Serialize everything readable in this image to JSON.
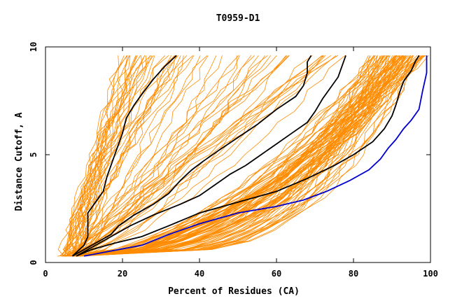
{
  "chart_data": {
    "type": "line",
    "title": "T0959-D1",
    "xlabel": "Percent of Residues (CA)",
    "ylabel": "Distance Cutoff, A",
    "xlim": [
      0,
      100
    ],
    "ylim": [
      0,
      10
    ],
    "x_ticks": [
      0,
      20,
      40,
      60,
      80,
      100
    ],
    "y_ticks": [
      0,
      5,
      10
    ],
    "x_tick_labels": [
      "0",
      "20",
      "40",
      "60",
      "80",
      "100"
    ],
    "y_tick_labels": [
      "0",
      "5",
      "10"
    ],
    "grid": false,
    "legend": "none",
    "colors": {
      "background_curves": "#ff8c00",
      "highlight_black": "#000000",
      "highlight_blue": "#0000cc"
    },
    "highlight_series": [
      {
        "color": "#000000",
        "points": [
          [
            7,
            0.3
          ],
          [
            10,
            0.8
          ],
          [
            11,
            1.2
          ],
          [
            11,
            2.3
          ],
          [
            13,
            2.8
          ],
          [
            15,
            3.3
          ],
          [
            16,
            4.0
          ],
          [
            17,
            4.5
          ],
          [
            18,
            5.0
          ],
          [
            19,
            5.5
          ],
          [
            20,
            6.0
          ],
          [
            21,
            6.7
          ],
          [
            23,
            7.3
          ],
          [
            25,
            7.8
          ],
          [
            28,
            8.5
          ],
          [
            31,
            9.1
          ],
          [
            34,
            9.6
          ]
        ]
      },
      {
        "color": "#000000",
        "points": [
          [
            7,
            0.3
          ],
          [
            12,
            0.8
          ],
          [
            17,
            1.3
          ],
          [
            19,
            1.7
          ],
          [
            23,
            2.2
          ],
          [
            28,
            2.7
          ],
          [
            32,
            3.2
          ],
          [
            35,
            3.8
          ],
          [
            38,
            4.3
          ],
          [
            41,
            4.7
          ],
          [
            45,
            5.2
          ],
          [
            50,
            5.8
          ],
          [
            55,
            6.4
          ],
          [
            60,
            7.1
          ],
          [
            65,
            7.7
          ],
          [
            67,
            8.2
          ],
          [
            68,
            8.8
          ],
          [
            68,
            9.3
          ],
          [
            69,
            9.6
          ]
        ]
      },
      {
        "color": "#000000",
        "points": [
          [
            8,
            0.3
          ],
          [
            13,
            0.8
          ],
          [
            18,
            1.3
          ],
          [
            22,
            1.7
          ],
          [
            28,
            2.2
          ],
          [
            35,
            2.7
          ],
          [
            40,
            3.1
          ],
          [
            44,
            3.6
          ],
          [
            48,
            4.1
          ],
          [
            52,
            4.5
          ],
          [
            56,
            5.0
          ],
          [
            60,
            5.5
          ],
          [
            64,
            6.0
          ],
          [
            68,
            6.5
          ],
          [
            70,
            7.0
          ],
          [
            72,
            7.6
          ],
          [
            74,
            8.1
          ],
          [
            76,
            8.6
          ],
          [
            77,
            9.1
          ],
          [
            78,
            9.6
          ]
        ]
      },
      {
        "color": "#000000",
        "points": [
          [
            8,
            0.3
          ],
          [
            12,
            0.6
          ],
          [
            18,
            0.9
          ],
          [
            25,
            1.2
          ],
          [
            32,
            1.7
          ],
          [
            40,
            2.3
          ],
          [
            50,
            2.8
          ],
          [
            60,
            3.3
          ],
          [
            68,
            3.9
          ],
          [
            75,
            4.5
          ],
          [
            80,
            5.0
          ],
          [
            85,
            5.6
          ],
          [
            88,
            6.2
          ],
          [
            90,
            6.8
          ],
          [
            91,
            7.3
          ],
          [
            92,
            7.9
          ],
          [
            93,
            8.4
          ],
          [
            95,
            8.9
          ],
          [
            96,
            9.3
          ],
          [
            97,
            9.6
          ]
        ]
      },
      {
        "color": "#0000cc",
        "points": [
          [
            10,
            0.3
          ],
          [
            16,
            0.5
          ],
          [
            25,
            0.8
          ],
          [
            32,
            1.3
          ],
          [
            40,
            1.8
          ],
          [
            50,
            2.3
          ],
          [
            60,
            2.6
          ],
          [
            67,
            2.9
          ],
          [
            73,
            3.3
          ],
          [
            79,
            3.8
          ],
          [
            84,
            4.3
          ],
          [
            87,
            4.8
          ],
          [
            89,
            5.3
          ],
          [
            91,
            5.7
          ],
          [
            93,
            6.2
          ],
          [
            95,
            6.6
          ],
          [
            97,
            7.1
          ],
          [
            98,
            8.0
          ],
          [
            99,
            8.8
          ],
          [
            99,
            9.6
          ]
        ]
      }
    ]
  }
}
